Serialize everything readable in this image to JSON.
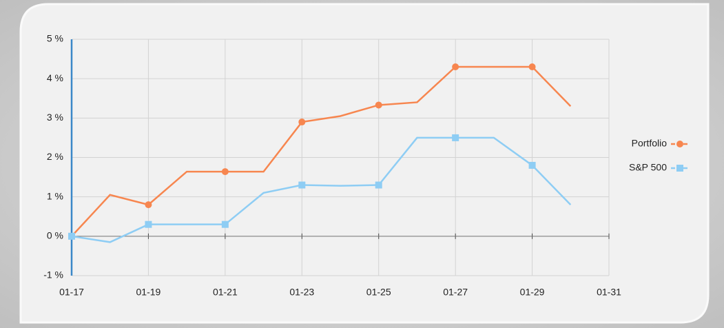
{
  "chart_data": {
    "type": "line",
    "categories": [
      "01-17",
      null,
      "01-19",
      null,
      "01-21",
      null,
      "01-23",
      null,
      "01-25",
      null,
      "01-27",
      null,
      "01-29",
      null,
      "01-31"
    ],
    "series": [
      {
        "name": "Portfolio",
        "color": "#f7864f",
        "marker": "circle",
        "values": [
          0,
          1.05,
          0.8,
          1.64,
          1.64,
          1.64,
          2.9,
          3.05,
          3.33,
          3.4,
          4.3,
          4.3,
          4.3,
          3.3,
          null
        ]
      },
      {
        "name": "S&P 500",
        "color": "#8ecdf4",
        "marker": "square",
        "values": [
          0,
          -0.15,
          0.3,
          0.3,
          0.3,
          1.1,
          1.3,
          1.28,
          1.3,
          2.5,
          2.5,
          2.5,
          1.8,
          0.8,
          null
        ]
      }
    ],
    "ylim": [
      -1,
      5
    ],
    "yticks": [
      {
        "value": -1,
        "label": "-1 %"
      },
      {
        "value": 0,
        "label": "0 %"
      },
      {
        "value": 1,
        "label": "1 %"
      },
      {
        "value": 2,
        "label": "2 %"
      },
      {
        "value": 3,
        "label": "3 %"
      },
      {
        "value": 4,
        "label": "4 %"
      },
      {
        "value": 5,
        "label": "5 %"
      }
    ],
    "grid": true,
    "legend": "right"
  }
}
